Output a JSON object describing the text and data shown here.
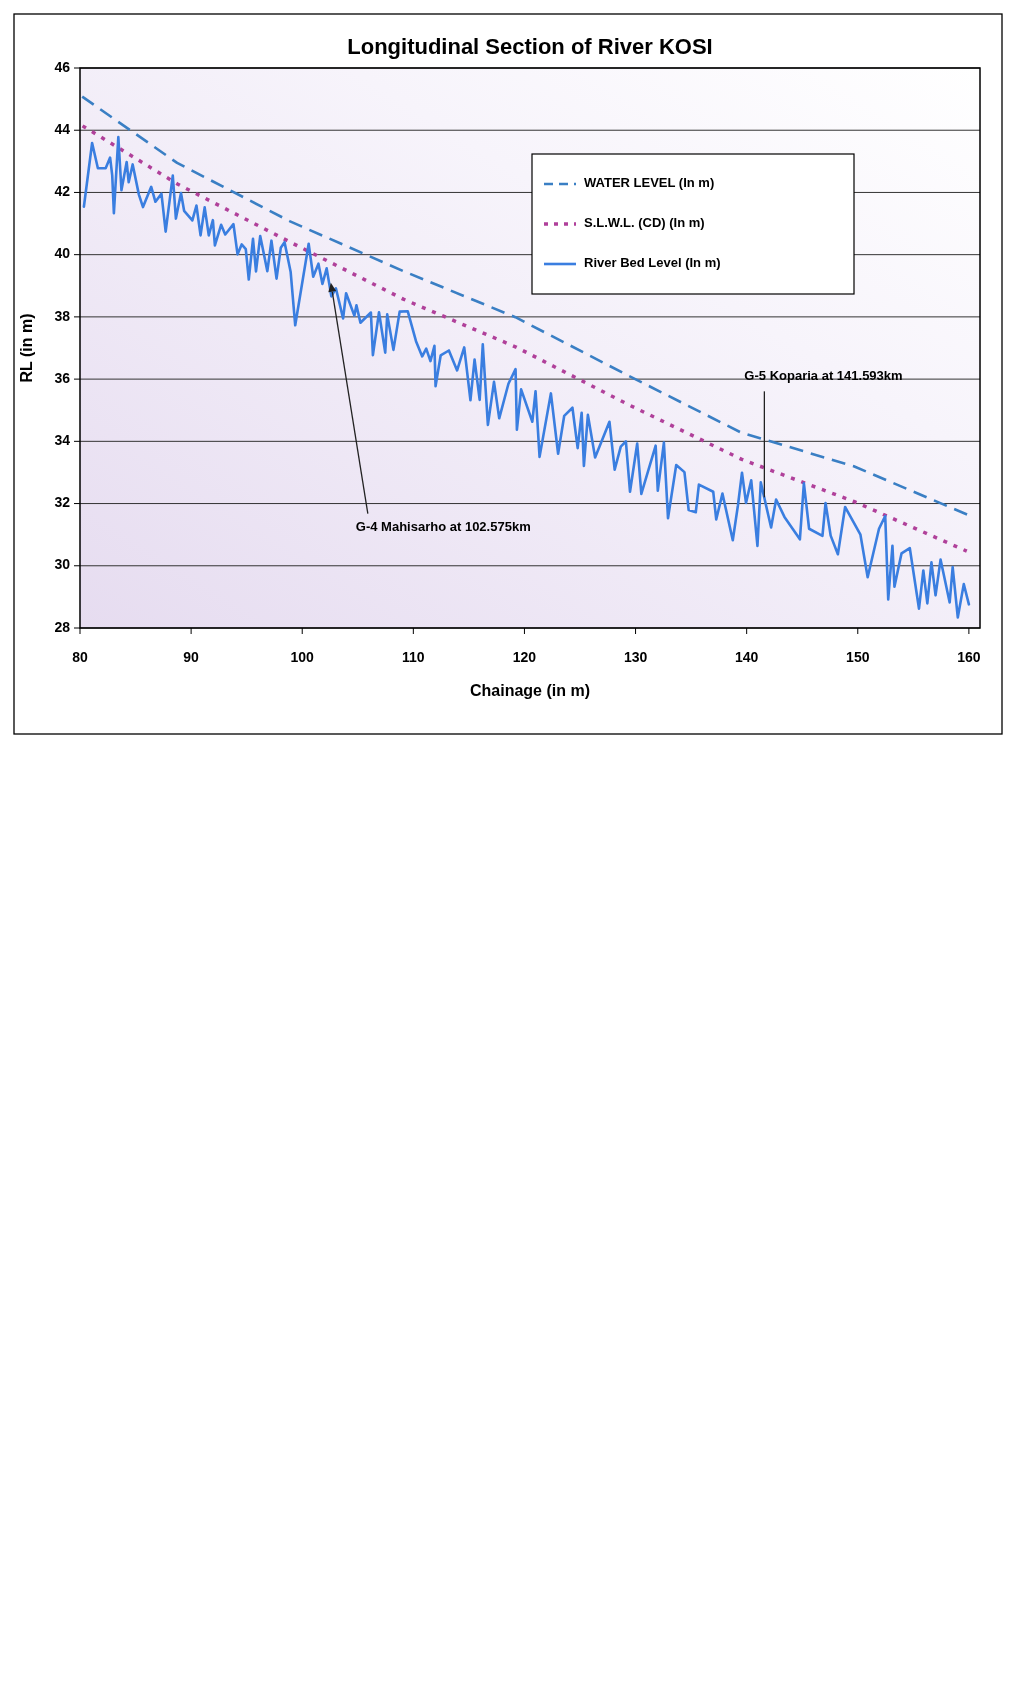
{
  "chart_data": {
    "type": "line",
    "title": "Longitudinal Section of River KOSI",
    "xlabel": "Chainage (in m)",
    "ylabel": "RL (in m)",
    "xlim": [
      80,
      161
    ],
    "xticks": [
      80,
      90,
      100,
      110,
      120,
      130,
      140,
      150,
      160
    ],
    "ylim": [
      28,
      46
    ],
    "yticks": [
      28,
      30,
      32,
      34,
      36,
      38,
      40,
      42,
      44,
      46
    ],
    "grid": "y",
    "legend": "top right",
    "annotations": [
      {
        "text": "G-5 Koparia at 141.593km",
        "x": 141.593,
        "y": 32.2
      },
      {
        "text": "G-4 Mahisarho at 102.575km",
        "x": 102.575,
        "y": 39.1
      }
    ],
    "series": [
      {
        "name": "WATER LEVEL (In m)",
        "color": "#3a7fc4",
        "line_style": "dashed",
        "x": [
          80.2,
          88.74,
          98.91,
          109.05,
          119.19,
          129.36,
          139.51,
          149.64,
          160.03
        ],
        "values": [
          45.08,
          42.95,
          41.07,
          39.48,
          37.99,
          36.11,
          34.28,
          33.2,
          31.62
        ]
      },
      {
        "name": "S.L.W.L. (CD) (In m)",
        "color": "#b0409a",
        "line_style": "dotted",
        "x": [
          80.23,
          88.77,
          98.94,
          109.1,
          119.24,
          129.41,
          139.56,
          149.7,
          159.81
        ],
        "values": [
          44.14,
          42.27,
          40.4,
          38.57,
          37.03,
          35.17,
          33.42,
          32.06,
          30.47
        ]
      },
      {
        "name": "River Bed Level (In m)",
        "color": "#3a7ee0",
        "line_style": "solid",
        "x": [
          80.35,
          81.09,
          81.61,
          82.31,
          82.71,
          82.9,
          83.05,
          83.45,
          83.73,
          84.2,
          84.38,
          84.74,
          85.3,
          85.67,
          86.41,
          86.79,
          87.33,
          87.71,
          88.35,
          88.63,
          89.09,
          89.37,
          90.11,
          90.48,
          90.85,
          91.22,
          91.59,
          91.96,
          92.14,
          92.7,
          93.07,
          93.81,
          94.18,
          94.55,
          94.92,
          95.19,
          95.57,
          95.84,
          96.22,
          96.86,
          97.23,
          97.69,
          98.07,
          98.41,
          98.96,
          99.37,
          100.58,
          100.99,
          101.46,
          101.82,
          102.2,
          102.62,
          103.03,
          103.68,
          103.95,
          104.69,
          104.88,
          105.24,
          106.18,
          106.36,
          106.91,
          107.47,
          107.65,
          108.21,
          108.77,
          109.5,
          110.24,
          110.8,
          111.16,
          111.54,
          111.9,
          112.0,
          112.46,
          113.2,
          113.94,
          114.58,
          115.14,
          115.51,
          115.97,
          116.25,
          116.71,
          117.26,
          117.73,
          118.56,
          119.2,
          119.32,
          119.7,
          120.71,
          121.0,
          121.36,
          122.38,
          123.03,
          123.58,
          124.32,
          124.79,
          125.15,
          125.35,
          125.71,
          126.36,
          127.65,
          128.12,
          128.67,
          129.13,
          129.5,
          130.15,
          130.52,
          131.81,
          132.0,
          132.55,
          132.92,
          133.66,
          134.4,
          134.78,
          135.42,
          135.7,
          136.99,
          137.26,
          137.82,
          138.75,
          139.21,
          139.58,
          139.94,
          140.41,
          140.97,
          141.27,
          142.2,
          142.65,
          143.4,
          144.79,
          145.15,
          145.62,
          146.82,
          147.1,
          147.56,
          148.21,
          148.86,
          150.24,
          150.89,
          151.91,
          152.47,
          152.74,
          153.12,
          153.3,
          153.94,
          154.68,
          155.51,
          155.9,
          156.26,
          156.63,
          157.0,
          157.45,
          158.27,
          158.54,
          159.0,
          159.54,
          160.0
        ],
        "values": [
          41.54,
          43.59,
          42.78,
          42.78,
          43.12,
          42.55,
          41.33,
          43.78,
          42.07,
          42.98,
          42.33,
          42.9,
          41.93,
          41.53,
          42.18,
          41.7,
          41.96,
          40.74,
          42.54,
          41.16,
          41.98,
          41.41,
          41.1,
          41.58,
          40.62,
          41.52,
          40.62,
          41.11,
          40.3,
          40.96,
          40.65,
          40.98,
          40.01,
          40.33,
          40.18,
          39.2,
          40.51,
          39.46,
          40.6,
          39.47,
          40.45,
          39.23,
          40.22,
          40.4,
          39.44,
          37.73,
          40.35,
          39.29,
          39.71,
          39.06,
          39.56,
          38.66,
          38.92,
          37.95,
          38.76,
          38.04,
          38.37,
          37.81,
          38.14,
          36.77,
          38.15,
          36.85,
          38.08,
          36.94,
          38.17,
          38.18,
          37.22,
          36.73,
          36.98,
          36.58,
          37.07,
          35.77,
          36.76,
          36.92,
          36.28,
          37.02,
          35.32,
          36.63,
          35.33,
          37.12,
          34.53,
          35.91,
          34.74,
          35.85,
          36.32,
          34.37,
          35.67,
          34.63,
          35.61,
          33.5,
          35.54,
          33.6,
          34.82,
          35.08,
          33.78,
          34.92,
          33.21,
          34.85,
          33.48,
          34.63,
          33.09,
          33.83,
          34.0,
          32.38,
          33.93,
          32.31,
          33.86,
          32.41,
          33.96,
          31.53,
          33.24,
          33.01,
          31.79,
          31.72,
          32.61,
          32.38,
          31.49,
          32.32,
          30.82,
          31.93,
          32.99,
          32.02,
          32.75,
          30.64,
          32.68,
          31.23,
          32.13,
          31.57,
          30.85,
          32.65,
          31.19,
          30.96,
          32.02,
          30.97,
          30.37,
          31.89,
          31.0,
          29.63,
          31.19,
          31.6,
          28.92,
          30.64,
          29.33,
          30.4,
          30.57,
          28.62,
          29.85,
          28.79,
          30.11,
          29.05,
          30.2,
          28.82,
          29.96,
          28.34,
          29.41,
          28.76
        ]
      }
    ]
  }
}
